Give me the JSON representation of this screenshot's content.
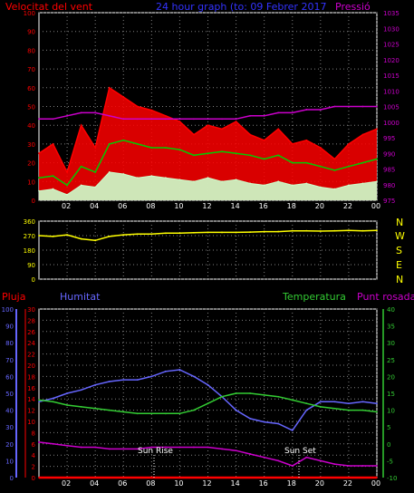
{
  "titles": {
    "wind_speed": "Velocitat del vent",
    "center": "24 hour graph (to: 09 Febrer 2017",
    "pressure": "Pressió",
    "rain": "Pluja",
    "humidity": "Humitat",
    "temperature": "Temperatura",
    "dewpoint": "Punt rosada"
  },
  "compass": [
    "N",
    "W",
    "S",
    "E",
    "N"
  ],
  "annotations": {
    "sunrise": "Sun Rise",
    "sunset": "Sun Set"
  },
  "colors": {
    "wind_gust": "#ff0000",
    "wind_avg": "#00cc00",
    "wind_light": "#ccffcc",
    "pressure": "#cc00cc",
    "direction": "#ffff00",
    "humidity": "#6666ff",
    "temperature": "#33cc33",
    "dewpoint": "#cc00cc",
    "rain": "#ff0000",
    "grid": "#808080"
  },
  "x_tick_labels": [
    "02",
    "04",
    "06",
    "08",
    "10",
    "12",
    "14",
    "16",
    "18",
    "20",
    "22",
    "00"
  ],
  "chart_data": [
    {
      "type": "line",
      "x": [
        0,
        1,
        2,
        3,
        4,
        5,
        6,
        7,
        8,
        9,
        10,
        11,
        12,
        13,
        14,
        15,
        16,
        17,
        18,
        19,
        20,
        21,
        22,
        23,
        24
      ],
      "xlim": [
        0,
        24
      ],
      "y_left_ticks": [
        0,
        10,
        20,
        30,
        40,
        50,
        60,
        70,
        80,
        90,
        100
      ],
      "y_right_ticks": [
        975,
        980,
        985,
        990,
        995,
        1000,
        1005,
        1010,
        1015,
        1020,
        1025,
        1030,
        1035
      ],
      "ylim_left": [
        0,
        100
      ],
      "ylim_right": [
        975,
        1035
      ],
      "series": [
        {
          "key": "wind_gust",
          "axis": "left",
          "values": [
            25,
            30,
            15,
            40,
            28,
            60,
            55,
            50,
            48,
            45,
            42,
            35,
            40,
            38,
            42,
            35,
            32,
            38,
            30,
            32,
            28,
            22,
            30,
            35,
            38
          ]
        },
        {
          "key": "wind_avg",
          "axis": "left",
          "values": [
            12,
            13,
            8,
            18,
            15,
            30,
            32,
            30,
            28,
            28,
            27,
            24,
            25,
            26,
            25,
            24,
            22,
            24,
            20,
            20,
            18,
            16,
            18,
            20,
            22
          ]
        },
        {
          "key": "wind_light",
          "axis": "left",
          "values": [
            5,
            6,
            3,
            8,
            7,
            15,
            14,
            12,
            13,
            12,
            11,
            10,
            12,
            10,
            11,
            9,
            8,
            10,
            8,
            9,
            7,
            6,
            8,
            9,
            10
          ]
        },
        {
          "key": "pressure",
          "axis": "right",
          "values": [
            1001,
            1001,
            1002,
            1003,
            1003,
            1002,
            1001,
            1001,
            1001,
            1001,
            1001,
            1001,
            1001,
            1001,
            1001,
            1002,
            1002,
            1003,
            1003,
            1004,
            1004,
            1005,
            1005,
            1005,
            1005
          ]
        }
      ]
    },
    {
      "type": "line",
      "x": [
        0,
        1,
        2,
        3,
        4,
        5,
        6,
        7,
        8,
        9,
        10,
        11,
        12,
        13,
        14,
        15,
        16,
        17,
        18,
        19,
        20,
        21,
        22,
        23,
        24
      ],
      "xlim": [
        0,
        24
      ],
      "y_left_ticks": [
        0,
        90,
        180,
        270,
        360
      ],
      "ylim_left": [
        0,
        360
      ],
      "series": [
        {
          "key": "direction",
          "axis": "left",
          "values": [
            270,
            265,
            275,
            250,
            240,
            265,
            275,
            280,
            280,
            285,
            285,
            288,
            290,
            290,
            290,
            292,
            295,
            295,
            300,
            300,
            298,
            300,
            302,
            300,
            302
          ]
        }
      ]
    },
    {
      "type": "line",
      "x": [
        0,
        1,
        2,
        3,
        4,
        5,
        6,
        7,
        8,
        9,
        10,
        11,
        12,
        13,
        14,
        15,
        16,
        17,
        18,
        19,
        20,
        21,
        22,
        23,
        24
      ],
      "xlim": [
        0,
        24
      ],
      "y_humidity_ticks": [
        0,
        10,
        20,
        30,
        40,
        50,
        60,
        70,
        80,
        90,
        100
      ],
      "y_rain_ticks": [
        0,
        2,
        4,
        6,
        8,
        10,
        12,
        14,
        16,
        18,
        20,
        22,
        24,
        26,
        28,
        30
      ],
      "y_temp_ticks": [
        -10,
        -5,
        0,
        5,
        10,
        15,
        20,
        25,
        30,
        35,
        40
      ],
      "ylim_humidity": [
        0,
        100
      ],
      "ylim_rain": [
        0,
        30
      ],
      "ylim_temp": [
        -10,
        40
      ],
      "series": [
        {
          "key": "humidity",
          "axis": "humidity",
          "values": [
            45,
            47,
            50,
            52,
            55,
            57,
            58,
            58,
            60,
            63,
            64,
            60,
            55,
            48,
            40,
            35,
            33,
            32,
            28,
            40,
            45,
            45,
            44,
            45,
            44
          ]
        },
        {
          "key": "temperature",
          "axis": "temp",
          "values": [
            13,
            12.5,
            11.5,
            11,
            10.5,
            10,
            9.5,
            9,
            9,
            9,
            9,
            10,
            12,
            14,
            15,
            15,
            14.5,
            14,
            13,
            12,
            11,
            10.5,
            10,
            10,
            9.5
          ]
        },
        {
          "key": "dewpoint",
          "axis": "temp",
          "values": [
            0.5,
            0,
            -0.5,
            -1,
            -1,
            -1.5,
            -1.5,
            -1.5,
            -1,
            -1,
            -1,
            -1,
            -1,
            -1.5,
            -2,
            -3,
            -4,
            -5,
            -6.5,
            -4,
            -5,
            -6,
            -6.5,
            -6.5,
            -6.5
          ]
        },
        {
          "key": "rain",
          "axis": "rain",
          "values": [
            0,
            0,
            0,
            0,
            0,
            0,
            0,
            0,
            0,
            0,
            0,
            0,
            0,
            0,
            0,
            0,
            0,
            0,
            0,
            0,
            0,
            0,
            0,
            0,
            0
          ]
        }
      ]
    }
  ]
}
